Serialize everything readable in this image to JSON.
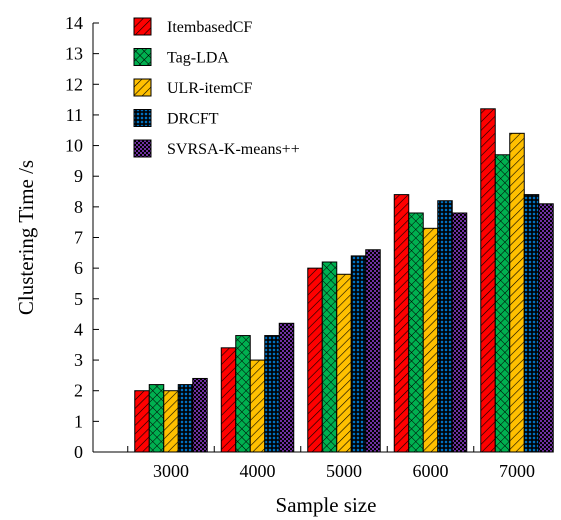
{
  "chart_data": {
    "type": "bar",
    "categories": [
      "3000",
      "4000",
      "5000",
      "6000",
      "7000"
    ],
    "series": [
      {
        "name": "ItembasedCF",
        "color": "#ff0000",
        "pattern": "diagonal-hatch",
        "values": [
          2.0,
          3.4,
          6.0,
          8.4,
          11.2
        ]
      },
      {
        "name": "Tag-LDA",
        "color": "#00b050",
        "pattern": "cross-hatch",
        "values": [
          2.2,
          3.8,
          6.2,
          7.8,
          9.7
        ]
      },
      {
        "name": "ULR-itemCF",
        "color": "#ffc000",
        "pattern": "diagonal-hatch",
        "values": [
          2.0,
          3.0,
          5.8,
          7.3,
          10.4
        ]
      },
      {
        "name": "DRCFT",
        "color": "#0070c0",
        "pattern": "dots",
        "values": [
          2.2,
          3.8,
          6.4,
          8.2,
          8.4
        ]
      },
      {
        "name": "SVRSA-K-means++",
        "color": "#7030a0",
        "pattern": "checker",
        "values": [
          2.4,
          4.2,
          6.6,
          7.8,
          8.1
        ]
      }
    ],
    "xlabel": "Sample size",
    "ylabel": "Clustering Time /s",
    "ylim": [
      0,
      14
    ],
    "yticks": [
      "0",
      "1",
      "2",
      "3",
      "4",
      "5",
      "6",
      "7",
      "8",
      "9",
      "10",
      "11",
      "12",
      "13",
      "14"
    ],
    "grid": false,
    "legend_position": "top-left"
  }
}
